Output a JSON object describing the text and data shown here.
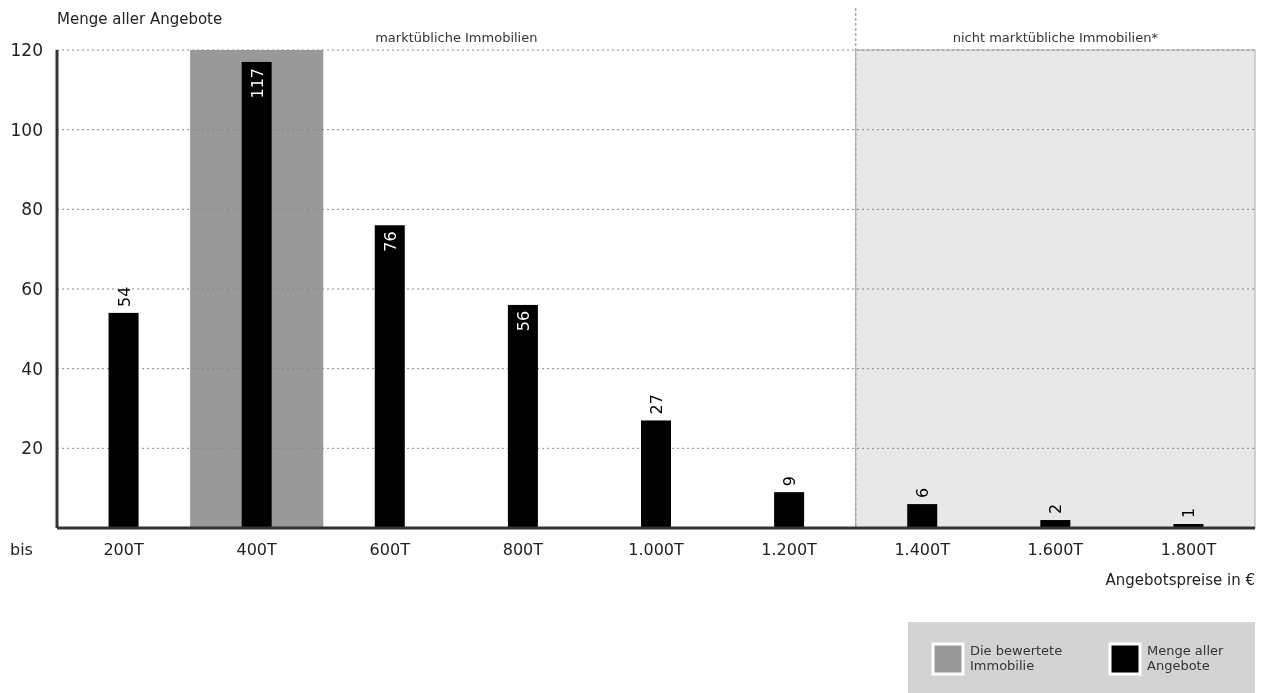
{
  "chart_data": {
    "type": "bar",
    "ylabel": "Menge aller Angebote",
    "xlabel": "Angebotspreise in €",
    "categories": [
      "200T",
      "400T",
      "600T",
      "800T",
      "1.000T",
      "1.200T",
      "1.400T",
      "1.600T",
      "1.800T"
    ],
    "series": [
      {
        "name": "Menge aller Angebote",
        "color": "#000000",
        "values": [
          54,
          117,
          76,
          56,
          27,
          9,
          6,
          2,
          1
        ]
      }
    ],
    "ylim": [
      0,
      120
    ],
    "yticks": [
      20,
      40,
      60,
      80,
      100,
      120
    ],
    "grid": "y",
    "data_labels": true,
    "bands": [
      {
        "axis": "x",
        "from": "400T",
        "to": "400T",
        "label": "Die bewertete Immobilie",
        "color": "#999999"
      },
      {
        "axis": "x",
        "from": "1.400T",
        "to": "1.800T",
        "label": "nicht marktübliche Immobilien*",
        "color": "#e8e8e8"
      }
    ],
    "ref_lines": [
      {
        "axis": "x",
        "value": "1.400T",
        "color": "#aaaaaa",
        "line_style": "dashed"
      }
    ],
    "annotations": [
      "bis",
      "marktübliche Immobilien"
    ],
    "legend": "bottom right"
  }
}
